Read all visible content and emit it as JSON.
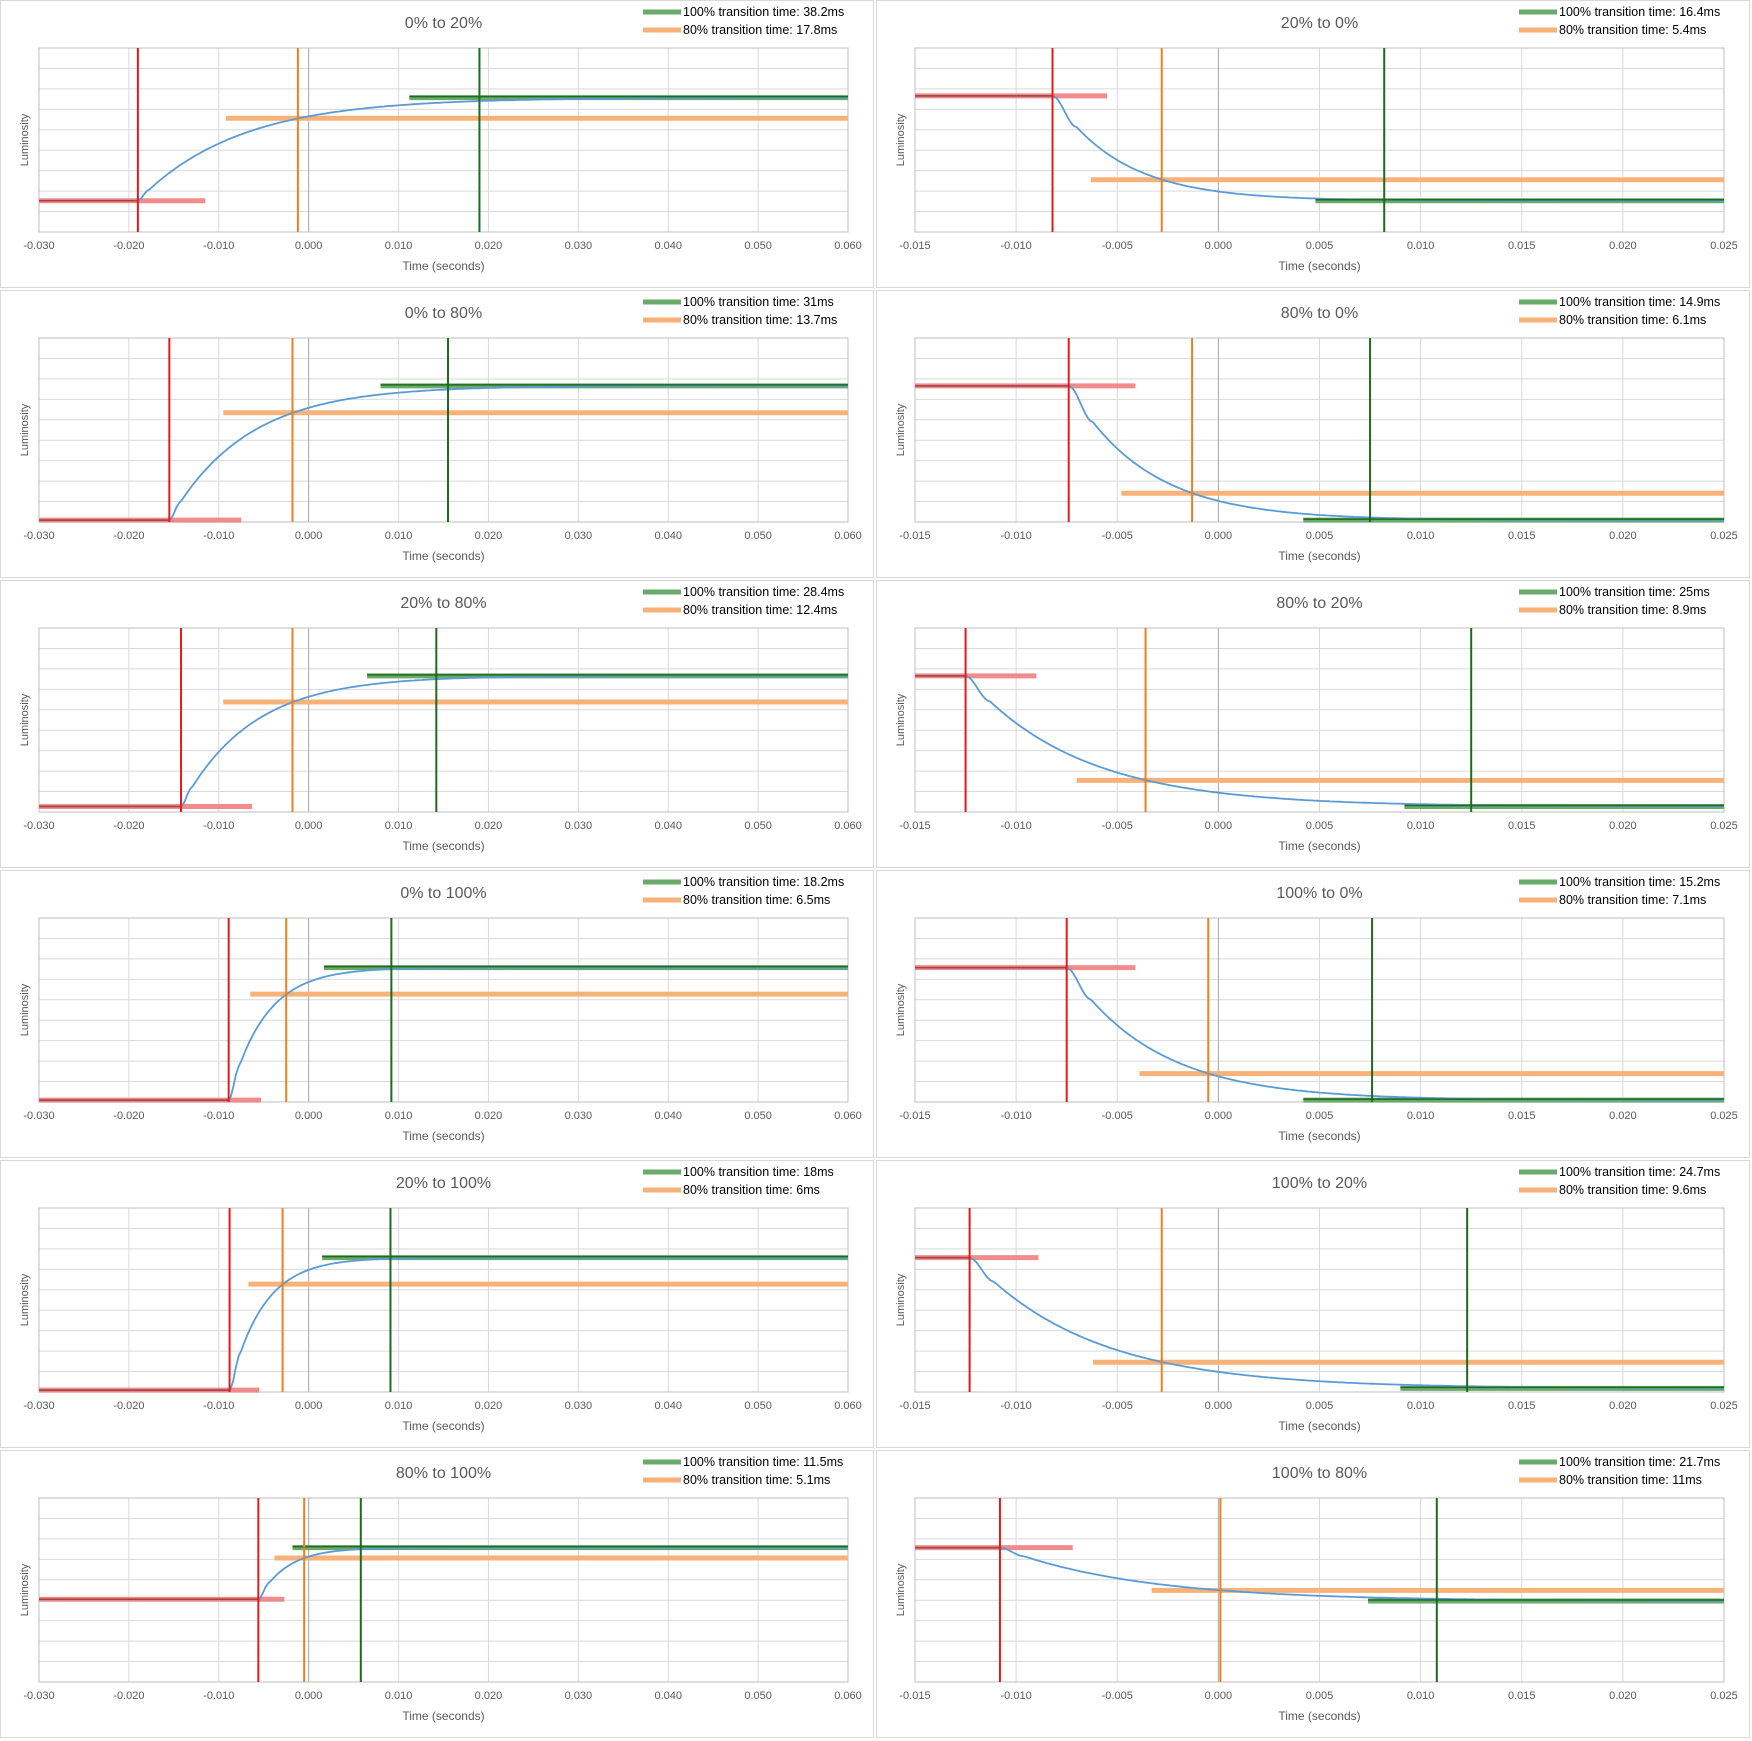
{
  "colors": {
    "grid": "#d9d9d9",
    "axis": "#bfbfbf",
    "zero": "#bfbfbf",
    "curve": "#5b9bd5",
    "red": "#e41a1c",
    "red_band": "#f08080",
    "orange": "#f07f1f",
    "orange_band": "#f7b27a",
    "green": "#1e6a1e",
    "green_band": "#6aaa6a",
    "text": "#595959"
  },
  "chart_data": [
    {
      "type": "line",
      "title": "0% to 20%",
      "xlabel": "Time (seconds)",
      "ylabel": "Luminosity",
      "xlim": [
        -0.03,
        0.06
      ],
      "xticks": [
        "-0.030",
        "-0.020",
        "-0.010",
        "0.000",
        "0.010",
        "0.020",
        "0.030",
        "0.040",
        "0.050",
        "0.060"
      ],
      "ylim": [
        0,
        1
      ],
      "legend": [
        {
          "label": "100% transition time: 38.2ms"
        },
        {
          "label": "80% transition time: 17.8ms"
        }
      ],
      "start_level": 0.17,
      "end_level": 0.73,
      "onset": -0.019,
      "t80": -0.0012,
      "t100": 0.019,
      "start_band": [
        -0.03,
        -0.0115
      ],
      "orange_band": [
        -0.0092,
        0.06
      ],
      "green_band": [
        0.0112,
        0.06
      ]
    },
    {
      "type": "line",
      "title": "20% to 0%",
      "xlabel": "Time (seconds)",
      "ylabel": "Luminosity",
      "xlim": [
        -0.015,
        0.025
      ],
      "xticks": [
        "-0.015",
        "-0.010",
        "-0.005",
        "0.000",
        "0.005",
        "0.010",
        "0.015",
        "0.020",
        "0.025"
      ],
      "ylim": [
        0,
        1
      ],
      "legend": [
        {
          "label": "100% transition time: 16.4ms"
        },
        {
          "label": "80% transition time: 5.4ms"
        }
      ],
      "start_level": 0.74,
      "end_level": 0.17,
      "onset": -0.0082,
      "t80": -0.0028,
      "t100": 0.0082,
      "start_band": [
        -0.015,
        -0.0055
      ],
      "orange_band": [
        -0.0063,
        0.025
      ],
      "green_band": [
        0.0048,
        0.025
      ]
    },
    {
      "type": "line",
      "title": "0% to 80%",
      "xlabel": "Time (seconds)",
      "ylabel": "Luminosity",
      "xlim": [
        -0.03,
        0.06
      ],
      "xticks": [
        "-0.030",
        "-0.020",
        "-0.010",
        "0.000",
        "0.010",
        "0.020",
        "0.030",
        "0.040",
        "0.050",
        "0.060"
      ],
      "ylim": [
        0,
        1
      ],
      "legend": [
        {
          "label": "100% transition time: 31ms"
        },
        {
          "label": "80% transition time: 13.7ms"
        }
      ],
      "start_level": 0.01,
      "end_level": 0.74,
      "onset": -0.0155,
      "t80": -0.0018,
      "t100": 0.0155,
      "start_band": [
        -0.03,
        -0.0075
      ],
      "orange_band": [
        -0.0095,
        0.06
      ],
      "green_band": [
        0.008,
        0.06
      ]
    },
    {
      "type": "line",
      "title": "80% to 0%",
      "xlabel": "Time (seconds)",
      "ylabel": "Luminosity",
      "xlim": [
        -0.015,
        0.025
      ],
      "xticks": [
        "-0.015",
        "-0.010",
        "-0.005",
        "0.000",
        "0.005",
        "0.010",
        "0.015",
        "0.020",
        "0.025"
      ],
      "ylim": [
        0,
        1
      ],
      "legend": [
        {
          "label": "100% transition time: 14.9ms"
        },
        {
          "label": "80% transition time: 6.1ms"
        }
      ],
      "start_level": 0.74,
      "end_level": 0.01,
      "onset": -0.0074,
      "t80": -0.0013,
      "t100": 0.0075,
      "start_band": [
        -0.015,
        -0.0041
      ],
      "orange_band": [
        -0.0048,
        0.025
      ],
      "green_band": [
        0.0042,
        0.025
      ]
    },
    {
      "type": "line",
      "title": "20% to 80%",
      "xlabel": "Time (seconds)",
      "ylabel": "Luminosity",
      "xlim": [
        -0.03,
        0.06
      ],
      "xticks": [
        "-0.030",
        "-0.020",
        "-0.010",
        "0.000",
        "0.010",
        "0.020",
        "0.030",
        "0.040",
        "0.050",
        "0.060"
      ],
      "ylim": [
        0,
        1
      ],
      "legend": [
        {
          "label": "100% transition time: 28.4ms"
        },
        {
          "label": "80% transition time: 12.4ms"
        }
      ],
      "start_level": 0.03,
      "end_level": 0.74,
      "onset": -0.0142,
      "t80": -0.0018,
      "t100": 0.0142,
      "start_band": [
        -0.03,
        -0.0063
      ],
      "orange_band": [
        -0.0095,
        0.06
      ],
      "green_band": [
        0.0065,
        0.06
      ]
    },
    {
      "type": "line",
      "title": "80% to 20%",
      "xlabel": "Time (seconds)",
      "ylabel": "Luminosity",
      "xlim": [
        -0.015,
        0.025
      ],
      "xticks": [
        "-0.015",
        "-0.010",
        "-0.005",
        "0.000",
        "0.005",
        "0.010",
        "0.015",
        "0.020",
        "0.025"
      ],
      "ylim": [
        0,
        1
      ],
      "legend": [
        {
          "label": "100% transition time: 25ms"
        },
        {
          "label": "80% transition time: 8.9ms"
        }
      ],
      "start_level": 0.74,
      "end_level": 0.03,
      "onset": -0.0125,
      "t80": -0.0036,
      "t100": 0.0125,
      "start_band": [
        -0.015,
        -0.009
      ],
      "orange_band": [
        -0.007,
        0.025
      ],
      "green_band": [
        0.0092,
        0.025
      ]
    },
    {
      "type": "line",
      "title": "0% to 100%",
      "xlabel": "Time (seconds)",
      "ylabel": "Luminosity",
      "xlim": [
        -0.03,
        0.06
      ],
      "xticks": [
        "-0.030",
        "-0.020",
        "-0.010",
        "0.000",
        "0.010",
        "0.020",
        "0.030",
        "0.040",
        "0.050",
        "0.060"
      ],
      "ylim": [
        0,
        1
      ],
      "legend": [
        {
          "label": "100% transition time: 18.2ms"
        },
        {
          "label": "80% transition time: 6.5ms"
        }
      ],
      "start_level": 0.01,
      "end_level": 0.73,
      "onset": -0.0089,
      "t80": -0.0025,
      "t100": 0.0092,
      "start_band": [
        -0.03,
        -0.0053
      ],
      "orange_band": [
        -0.0065,
        0.06
      ],
      "green_band": [
        0.0017,
        0.06
      ]
    },
    {
      "type": "line",
      "title": "100% to 0%",
      "xlabel": "Time (seconds)",
      "ylabel": "Luminosity",
      "xlim": [
        -0.015,
        0.025
      ],
      "xticks": [
        "-0.015",
        "-0.010",
        "-0.005",
        "0.000",
        "0.005",
        "0.010",
        "0.015",
        "0.020",
        "0.025"
      ],
      "ylim": [
        0,
        1
      ],
      "legend": [
        {
          "label": "100% transition time: 15.2ms"
        },
        {
          "label": "80% transition time: 7.1ms"
        }
      ],
      "start_level": 0.73,
      "end_level": 0.01,
      "onset": -0.0075,
      "t80": -0.0005,
      "t100": 0.0076,
      "start_band": [
        -0.015,
        -0.0041
      ],
      "orange_band": [
        -0.0039,
        0.025
      ],
      "green_band": [
        0.0042,
        0.025
      ]
    },
    {
      "type": "line",
      "title": "20% to 100%",
      "xlabel": "Time (seconds)",
      "ylabel": "Luminosity",
      "xlim": [
        -0.03,
        0.06
      ],
      "xticks": [
        "-0.030",
        "-0.020",
        "-0.010",
        "0.000",
        "0.010",
        "0.020",
        "0.030",
        "0.040",
        "0.050",
        "0.060"
      ],
      "ylim": [
        0,
        1
      ],
      "legend": [
        {
          "label": "100% transition time: 18ms"
        },
        {
          "label": "80% transition time: 6ms"
        }
      ],
      "start_level": 0.01,
      "end_level": 0.73,
      "onset": -0.0088,
      "t80": -0.0029,
      "t100": 0.0091,
      "start_band": [
        -0.03,
        -0.0055
      ],
      "orange_band": [
        -0.0067,
        0.06
      ],
      "green_band": [
        0.0015,
        0.06
      ]
    },
    {
      "type": "line",
      "title": "100% to 20%",
      "xlabel": "Time (seconds)",
      "ylabel": "Luminosity",
      "xlim": [
        -0.015,
        0.025
      ],
      "xticks": [
        "-0.015",
        "-0.010",
        "-0.005",
        "0.000",
        "0.005",
        "0.010",
        "0.015",
        "0.020",
        "0.025"
      ],
      "ylim": [
        0,
        1
      ],
      "legend": [
        {
          "label": "100% transition time: 24.7ms"
        },
        {
          "label": "80% transition time: 9.6ms"
        }
      ],
      "start_level": 0.73,
      "end_level": 0.02,
      "onset": -0.0123,
      "t80": -0.0028,
      "t100": 0.0123,
      "start_band": [
        -0.015,
        -0.0089
      ],
      "orange_band": [
        -0.0062,
        0.025
      ],
      "green_band": [
        0.009,
        0.025
      ]
    },
    {
      "type": "line",
      "title": "80% to 100%",
      "xlabel": "Time (seconds)",
      "ylabel": "Luminosity",
      "xlim": [
        -0.03,
        0.06
      ],
      "xticks": [
        "-0.030",
        "-0.020",
        "-0.010",
        "0.000",
        "0.010",
        "0.020",
        "0.030",
        "0.040",
        "0.050",
        "0.060"
      ],
      "ylim": [
        0,
        1
      ],
      "legend": [
        {
          "label": "100% transition time: 11.5ms"
        },
        {
          "label": "80% transition time: 5.1ms"
        }
      ],
      "start_level": 0.45,
      "end_level": 0.73,
      "onset": -0.0056,
      "t80": -0.0005,
      "t100": 0.0058,
      "start_band": [
        -0.03,
        -0.0027
      ],
      "orange_band": [
        -0.0038,
        0.06
      ],
      "green_band": [
        -0.0018,
        0.06
      ]
    },
    {
      "type": "line",
      "title": "100% to 80%",
      "xlabel": "Time (seconds)",
      "ylabel": "Luminosity",
      "xlim": [
        -0.015,
        0.025
      ],
      "xticks": [
        "-0.015",
        "-0.010",
        "-0.005",
        "0.000",
        "0.005",
        "0.010",
        "0.015",
        "0.020",
        "0.025"
      ],
      "ylim": [
        0,
        1
      ],
      "legend": [
        {
          "label": "100% transition time: 21.7ms"
        },
        {
          "label": "80% transition time: 11ms"
        }
      ],
      "start_level": 0.73,
      "end_level": 0.44,
      "onset": -0.0108,
      "t80": 0.0001,
      "t100": 0.0108,
      "start_band": [
        -0.015,
        -0.0072
      ],
      "orange_band": [
        -0.0033,
        0.025
      ],
      "green_band": [
        0.0074,
        0.025
      ]
    }
  ]
}
